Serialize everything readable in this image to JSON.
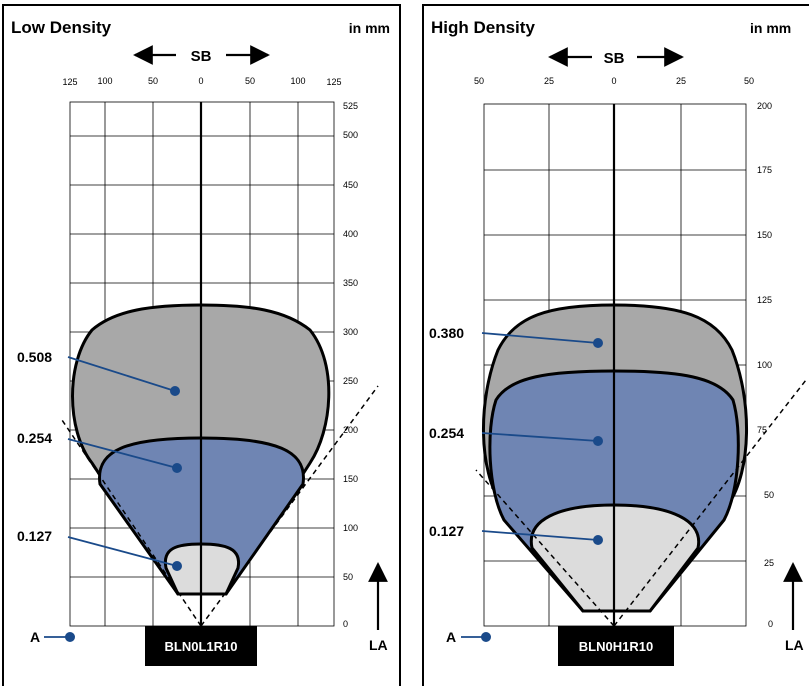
{
  "colors": {
    "outer": "#a8a8a8",
    "middle": "#6f85b3",
    "inner": "#dcdcdc",
    "leader": "#1a4a8a",
    "frame": "#000000"
  },
  "panels": [
    {
      "title": "Low Density",
      "unit": "in mm",
      "sb_label": "SB",
      "la_label": "LA",
      "a_label": "A",
      "model": "BLN0L1R10",
      "x_ticks": [
        "125",
        "100",
        "50",
        "0",
        "50",
        "100",
        "125"
      ],
      "y_ticks": [
        "525",
        "500",
        "450",
        "400",
        "350",
        "300",
        "250",
        "200",
        "150",
        "100",
        "50",
        "0"
      ],
      "zones": [
        {
          "label": "0.508",
          "level": "outer"
        },
        {
          "label": "0.254",
          "level": "middle"
        },
        {
          "label": "0.127",
          "level": "inner"
        }
      ]
    },
    {
      "title": "High Density",
      "unit": "in mm",
      "sb_label": "SB",
      "la_label": "LA",
      "a_label": "A",
      "model": "BLN0H1R10",
      "x_ticks": [
        "50",
        "25",
        "0",
        "25",
        "50"
      ],
      "y_ticks": [
        "200",
        "175",
        "150",
        "125",
        "100",
        "75",
        "50",
        "25",
        "0"
      ],
      "zones": [
        {
          "label": "0.380",
          "level": "outer"
        },
        {
          "label": "0.254",
          "level": "middle"
        },
        {
          "label": "0.127",
          "level": "inner"
        }
      ]
    }
  ]
}
